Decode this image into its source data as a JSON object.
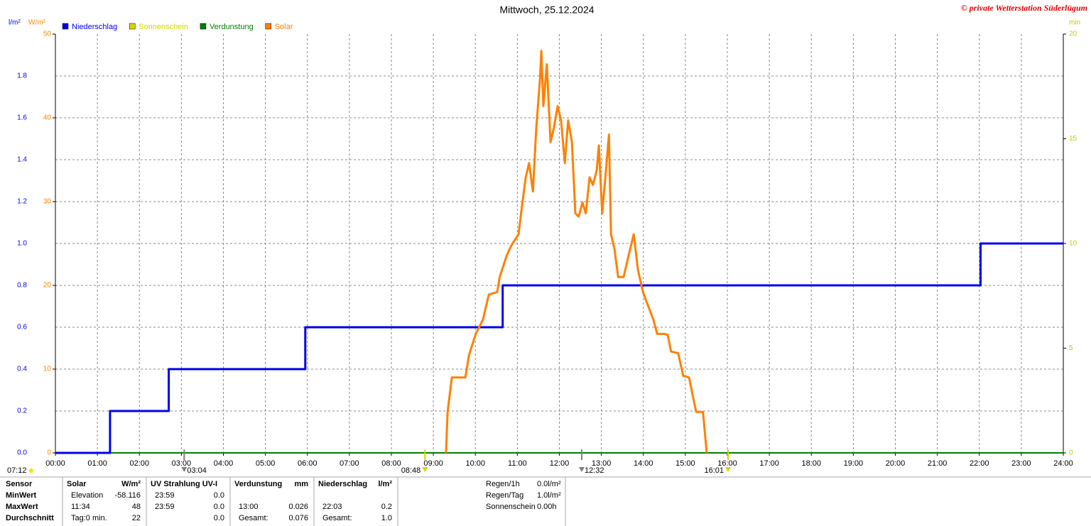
{
  "chart_data": {
    "type": "line",
    "title": "Mittwoch, 25.12.2024",
    "copyright": "© private Wetterstation Süderlügum",
    "y_unit": "l/m²",
    "y2_unit": "W/m²",
    "y3_unit": "min",
    "xlim": [
      0,
      24
    ],
    "xticks": [
      {
        "value": 0,
        "label": "00:00"
      },
      {
        "value": 1,
        "label": "01:00"
      },
      {
        "value": 2,
        "label": "02:00"
      },
      {
        "value": 3,
        "label": "03:00"
      },
      {
        "value": 4,
        "label": "04:00"
      },
      {
        "value": 5,
        "label": "05:00"
      },
      {
        "value": 6,
        "label": "06:00"
      },
      {
        "value": 7,
        "label": "07:00"
      },
      {
        "value": 8,
        "label": "08:00"
      },
      {
        "value": 9,
        "label": "09:00"
      },
      {
        "value": 10,
        "label": "10:00"
      },
      {
        "value": 11,
        "label": "11:00"
      },
      {
        "value": 12,
        "label": "12:00"
      },
      {
        "value": 13,
        "label": "13:00"
      },
      {
        "value": 14,
        "label": "14:00"
      },
      {
        "value": 15,
        "label": "15:00"
      },
      {
        "value": 16,
        "label": "16:00"
      },
      {
        "value": 17,
        "label": "17:00"
      },
      {
        "value": 18,
        "label": "18:00"
      },
      {
        "value": 19,
        "label": "19:00"
      },
      {
        "value": 20,
        "label": "20:00"
      },
      {
        "value": 21,
        "label": "21:00"
      },
      {
        "value": 22,
        "label": "22:00"
      },
      {
        "value": 23,
        "label": "23:00"
      },
      {
        "value": 24,
        "label": "24:00"
      }
    ],
    "ylim": [
      0,
      2
    ],
    "yticks": [
      {
        "value": 0,
        "label": "0.0"
      },
      0.2,
      0.4,
      0.6,
      0.8,
      {
        "value": 1,
        "label": "1.0"
      },
      1.2,
      1.4,
      1.6,
      1.8
    ],
    "y2lim": [
      0,
      50
    ],
    "y2ticks": [
      0,
      10,
      20,
      30,
      40,
      50
    ],
    "y3lim": [
      0,
      20
    ],
    "y3ticks": [
      0,
      5,
      10,
      15,
      20
    ],
    "grid": true,
    "series": [
      {
        "name": "Niederschlag",
        "color": "#0000ee",
        "axis": "y",
        "x": [
          0,
          1.3,
          1.3,
          2.7,
          2.7,
          5.95,
          5.95,
          10.65,
          10.65,
          22.03,
          22.03,
          24
        ],
        "values": [
          0,
          0,
          0.2,
          0.2,
          0.4,
          0.4,
          0.6,
          0.6,
          0.8,
          0.8,
          1.0,
          1.0
        ]
      },
      {
        "name": "Sonnenschein",
        "color": "#d4d400",
        "axis": "y3",
        "x": [],
        "values": []
      },
      {
        "name": "Verdunstung",
        "color": "#008000",
        "axis": "y3",
        "x": [],
        "values": []
      },
      {
        "name": "Solar",
        "color": "#ff8000",
        "axis": "y2",
        "x": [
          9.3,
          9.34,
          9.44,
          9.76,
          9.85,
          10.01,
          10.18,
          10.32,
          10.52,
          10.58,
          10.75,
          10.86,
          11.03,
          11.11,
          11.2,
          11.28,
          11.37,
          11.45,
          11.54,
          11.57,
          11.62,
          11.7,
          11.79,
          11.87,
          11.96,
          12.04,
          12.13,
          12.21,
          12.3,
          12.38,
          12.46,
          12.55,
          12.63,
          12.72,
          12.8,
          12.89,
          12.94,
          13.02,
          13.11,
          13.18,
          13.23,
          13.31,
          13.4,
          13.53,
          13.65,
          13.77,
          13.87,
          13.99,
          14.11,
          14.24,
          14.33,
          14.49,
          14.58,
          14.66,
          14.83,
          14.95,
          15.09,
          15.17,
          15.26,
          15.42,
          15.51
        ],
        "values": [
          0,
          4.9,
          9,
          9,
          11.7,
          14.2,
          15.9,
          18.9,
          19.2,
          21,
          23.6,
          24.8,
          26.1,
          29.5,
          32.9,
          34.6,
          31.2,
          38.8,
          44.7,
          48,
          41.4,
          46.4,
          37.1,
          38.8,
          41.4,
          39.7,
          34.6,
          39.7,
          37.1,
          28.6,
          28.2,
          29.9,
          28.6,
          32.9,
          32.0,
          33.7,
          36.7,
          28.6,
          33.7,
          38.0,
          26.1,
          24.4,
          21.0,
          21.0,
          23.6,
          26.1,
          21.9,
          19.2,
          17.6,
          15.9,
          14.2,
          14.2,
          14.1,
          12.1,
          11.9,
          9.2,
          9,
          7.0,
          4.9,
          4.9,
          0
        ]
      }
    ],
    "corner_note": "07:12",
    "annotations": [
      {
        "x": 3.067,
        "label": "03:04",
        "color": "#808080"
      },
      {
        "x": 8.8,
        "label": "08:48",
        "color": "#d4d400"
      },
      {
        "x": 12.533,
        "label": "12:32",
        "color": "#808080"
      },
      {
        "x": 16.017,
        "label": "16:01",
        "color": "#d4d400"
      }
    ]
  },
  "footer": {
    "row_labels": [
      "Sensor",
      "MinWert",
      "MaxWert",
      "Durchschnitt"
    ],
    "columns": [
      {
        "title": "Solar",
        "unit": "W/m²",
        "rows": [
          [
            "Elevation",
            "-58.116"
          ],
          [
            "11:34",
            "48"
          ],
          [
            "Tag:0 min.",
            "22"
          ]
        ]
      },
      {
        "title": "UV Strahlung UV-I",
        "rows": [
          [
            "23:59",
            "0.0"
          ],
          [
            "23:59",
            "0.0"
          ],
          [
            null,
            "0.0"
          ]
        ]
      },
      {
        "title": "Verdunstung",
        "unit": "mm",
        "rows": [
          [
            null,
            null
          ],
          [
            "13:00",
            "0.026"
          ],
          [
            "Gesamt:",
            "0.076"
          ]
        ]
      },
      {
        "title": "Niederschlag",
        "unit": "l/m²",
        "rows": [
          [
            null,
            null
          ],
          [
            "22:03",
            "0.2"
          ],
          [
            "Gesamt:",
            "1.0"
          ]
        ]
      }
    ],
    "info": [
      [
        "Regen/1h",
        "0.0l/m²"
      ],
      [
        "Regen/Tag",
        "1.0l/m²"
      ],
      [
        "Sonnenschein",
        "0.00h"
      ]
    ]
  }
}
